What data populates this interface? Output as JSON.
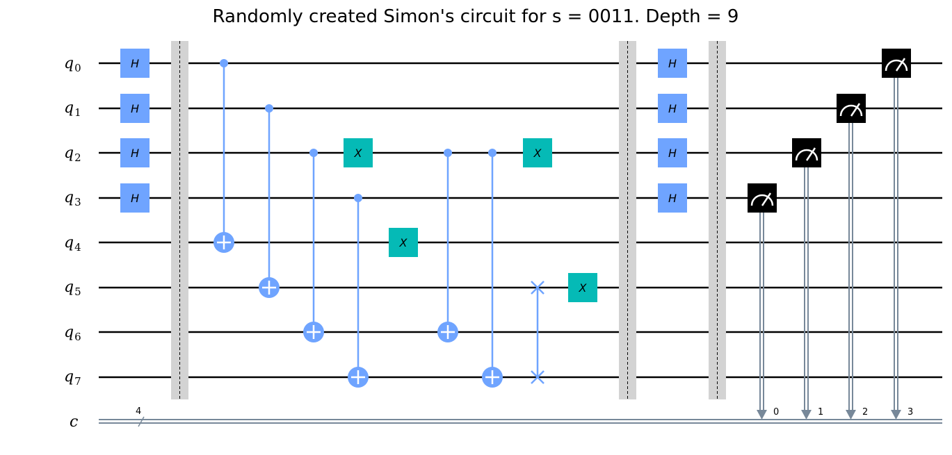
{
  "title": "Randomly created Simon's circuit for s = 0011. Depth = 9",
  "qubits": [
    {
      "label": "q",
      "sub": "0"
    },
    {
      "label": "q",
      "sub": "1"
    },
    {
      "label": "q",
      "sub": "2"
    },
    {
      "label": "q",
      "sub": "3"
    },
    {
      "label": "q",
      "sub": "4"
    },
    {
      "label": "q",
      "sub": "5"
    },
    {
      "label": "q",
      "sub": "6"
    },
    {
      "label": "q",
      "sub": "7"
    }
  ],
  "classical": {
    "label": "c",
    "size": "4"
  },
  "gate_labels": {
    "h": "H",
    "x": "X"
  },
  "measure_bits": [
    "0",
    "1",
    "2",
    "3"
  ],
  "colors": {
    "h_gate": "#6fa4ff",
    "x_gate": "#05bab6",
    "control": "#6fa4ff",
    "barrier": "#d3d3d3",
    "classical_wire": "#778899",
    "measure_box": "#000000"
  }
}
